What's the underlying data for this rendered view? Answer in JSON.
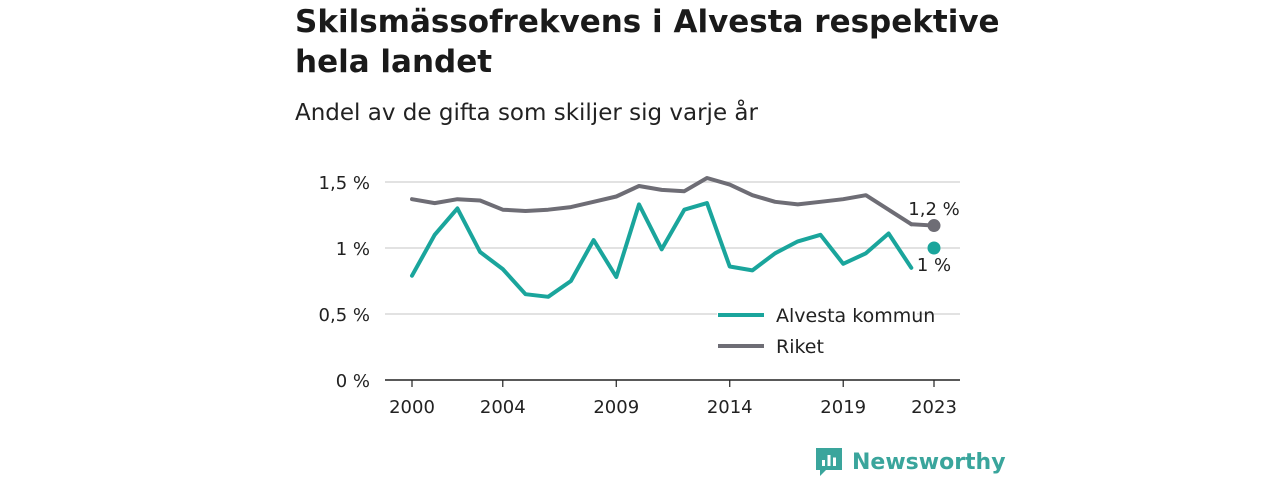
{
  "header": {
    "title": "Skilsmässofrekvens i Alvesta respektive hela landet",
    "subtitle": "Andel av de gifta som skiljer sig varje år"
  },
  "brand": {
    "name": "Newsworthy",
    "icon": "newsworthy-logo-icon",
    "color": "#3aa59c"
  },
  "chart_data": {
    "type": "line",
    "x": [
      2000,
      2001,
      2002,
      2003,
      2004,
      2005,
      2006,
      2007,
      2008,
      2009,
      2010,
      2011,
      2012,
      2013,
      2014,
      2015,
      2016,
      2017,
      2018,
      2019,
      2020,
      2021,
      2022,
      2023
    ],
    "series": [
      {
        "name": "Alvesta kommun",
        "color": "#1aa59c",
        "values": [
          0.79,
          1.1,
          1.3,
          0.97,
          0.84,
          0.65,
          0.63,
          0.75,
          1.06,
          0.78,
          1.33,
          0.99,
          1.29,
          1.34,
          0.86,
          0.83,
          0.96,
          1.05,
          1.1,
          0.88,
          0.96,
          1.11,
          0.85,
          1.0
        ],
        "end_label": "1 %"
      },
      {
        "name": "Riket",
        "color": "#6e6d75",
        "values": [
          1.37,
          1.34,
          1.37,
          1.36,
          1.29,
          1.28,
          1.29,
          1.31,
          1.35,
          1.39,
          1.47,
          1.44,
          1.43,
          1.53,
          1.48,
          1.4,
          1.35,
          1.33,
          1.35,
          1.37,
          1.4,
          1.29,
          1.18,
          1.17
        ],
        "end_label": "1,2 %"
      }
    ],
    "yticks": [
      0,
      0.5,
      1,
      1.5
    ],
    "ytick_labels": [
      "0 %",
      "0,5 %",
      "1 %",
      "1,5 %"
    ],
    "xticks": [
      2000,
      2004,
      2009,
      2014,
      2019,
      2023
    ],
    "xtick_labels": [
      "2000",
      "2004",
      "2009",
      "2014",
      "2019",
      "2023"
    ],
    "ylim": [
      0,
      1.5
    ],
    "xlim": [
      2000,
      2023
    ],
    "grid": true,
    "legend_position": "bottom-right"
  }
}
